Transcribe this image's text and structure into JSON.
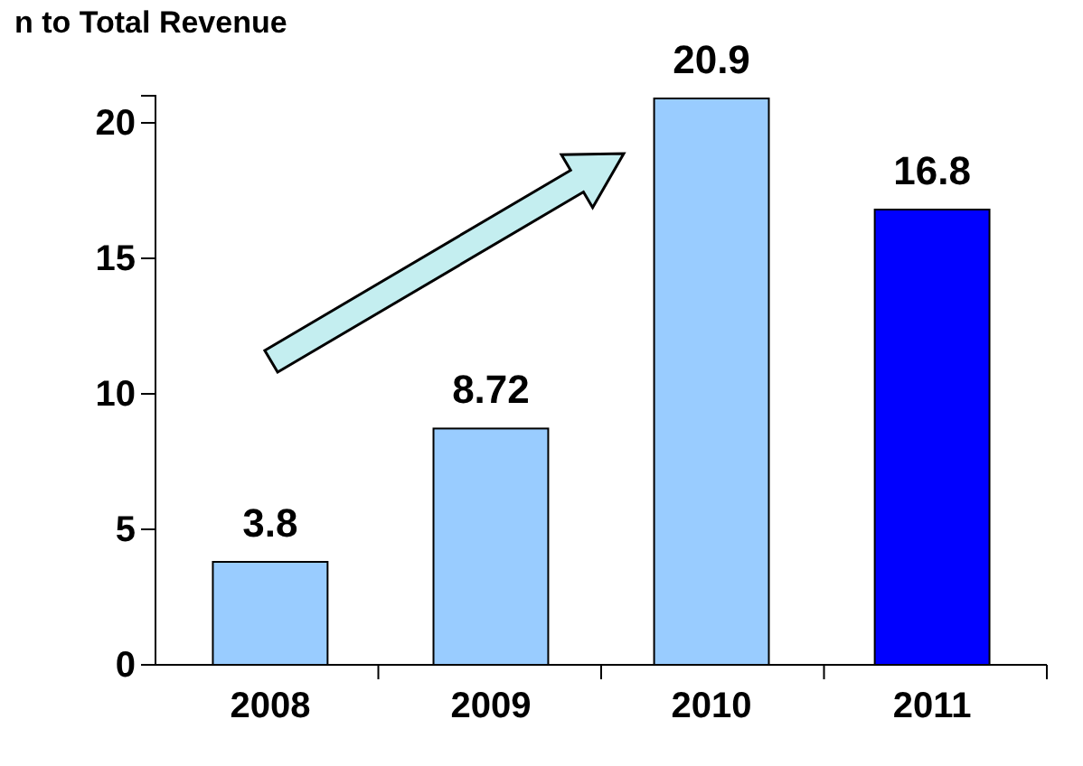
{
  "chart_data": {
    "type": "bar",
    "title": "n to Total Revenue",
    "categories": [
      "2008",
      "2009",
      "2010",
      "2011"
    ],
    "values": [
      3.8,
      8.72,
      20.9,
      16.8
    ],
    "colors": [
      "#99ccff",
      "#99ccff",
      "#99ccff",
      "#0000ff"
    ],
    "ylim": [
      0,
      21
    ],
    "yticks": [
      0,
      5,
      10,
      15,
      20
    ],
    "grid": false,
    "data_labels": true
  }
}
